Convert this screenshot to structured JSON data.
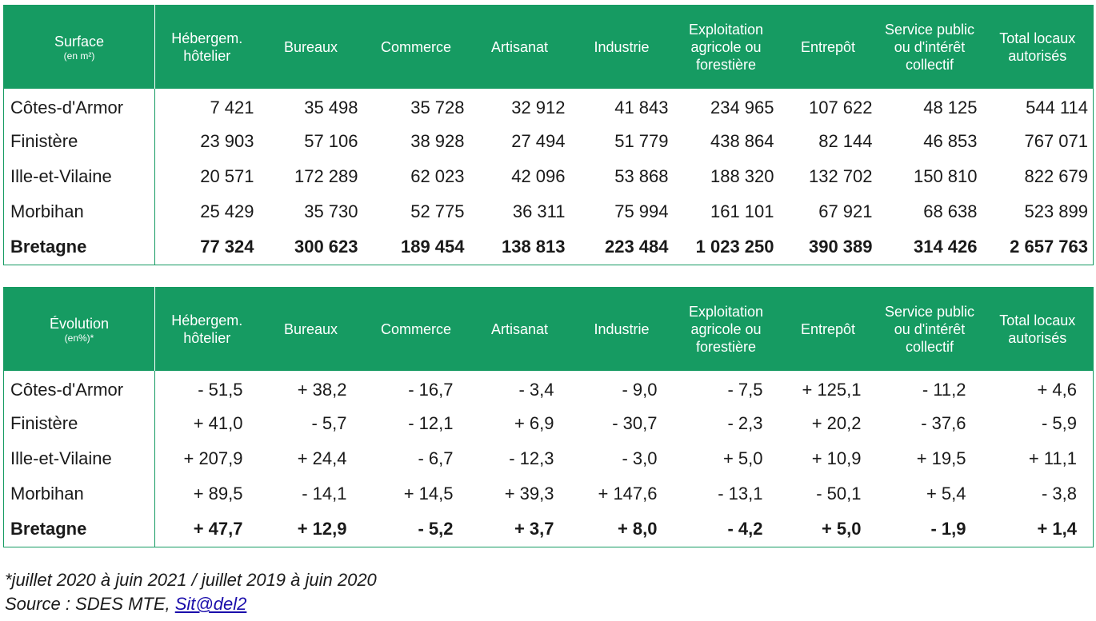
{
  "table_surface": {
    "header_first": "Surface",
    "header_first_unit": "(en m²)",
    "columns": [
      "Hébergem. hôtelier",
      "Bureaux",
      "Commerce",
      "Artisanat",
      "Industrie",
      "Exploitation agricole ou forestière",
      "Entrepôt",
      "Service public ou d'intérêt collectif",
      "Total locaux autorisés"
    ],
    "rows": [
      {
        "name": "Côtes-d'Armor",
        "values": [
          "7 421",
          "35 498",
          "35 728",
          "32 912",
          "41 843",
          "234 965",
          "107 622",
          "48 125",
          "544 114"
        ]
      },
      {
        "name": "Finistère",
        "values": [
          "23 903",
          "57 106",
          "38 928",
          "27 494",
          "51 779",
          "438 864",
          "82 144",
          "46 853",
          "767 071"
        ]
      },
      {
        "name": "Ille-et-Vilaine",
        "values": [
          "20 571",
          "172 289",
          "62 023",
          "42 096",
          "53 868",
          "188 320",
          "132 702",
          "150 810",
          "822 679"
        ]
      },
      {
        "name": "Morbihan",
        "values": [
          "25 429",
          "35 730",
          "52 775",
          "36 311",
          "75 994",
          "161 101",
          "67 921",
          "68 638",
          "523 899"
        ]
      }
    ],
    "total": {
      "name": "Bretagne",
      "values": [
        "77 324",
        "300 623",
        "189 454",
        "138 813",
        "223 484",
        "1 023 250",
        "390 389",
        "314 426",
        "2 657 763"
      ]
    }
  },
  "table_evolution": {
    "header_first": "Évolution",
    "header_first_unit": "(en%)*",
    "columns": [
      "Hébergem. hôtelier",
      "Bureaux",
      "Commerce",
      "Artisanat",
      "Industrie",
      "Exploitation agricole ou forestière",
      "Entrepôt",
      "Service public ou d'intérêt collectif",
      "Total locaux autorisés"
    ],
    "rows": [
      {
        "name": "Côtes-d'Armor",
        "values": [
          "- 51,5",
          "+ 38,2",
          "- 16,7",
          "- 3,4",
          "- 9,0",
          "- 7,5",
          "+ 125,1",
          "- 11,2",
          "+ 4,6"
        ]
      },
      {
        "name": "Finistère",
        "values": [
          "+ 41,0",
          "- 5,7",
          "- 12,1",
          "+ 6,9",
          "- 30,7",
          "- 2,3",
          "+ 20,2",
          "- 37,6",
          "- 5,9"
        ]
      },
      {
        "name": "Ille-et-Vilaine",
        "values": [
          "+ 207,9",
          "+ 24,4",
          "- 6,7",
          "- 12,3",
          "- 3,0",
          "+ 5,0",
          "+ 10,9",
          "+ 19,5",
          "+ 11,1"
        ]
      },
      {
        "name": "Morbihan",
        "values": [
          "+ 89,5",
          "- 14,1",
          "+ 14,5",
          "+ 39,3",
          "+ 147,6",
          "- 13,1",
          "- 50,1",
          "+ 5,4",
          "- 3,8"
        ]
      }
    ],
    "total": {
      "name": "Bretagne",
      "values": [
        "+ 47,7",
        "+ 12,9",
        "- 5,2",
        "+ 3,7",
        "+ 8,0",
        "- 4,2",
        "+ 5,0",
        "- 1,9",
        "+ 1,4"
      ]
    }
  },
  "footnote": {
    "period": "*juillet 2020 à juin 2021 / juillet 2019 à juin 2020",
    "source_prefix": "Source : SDES MTE, ",
    "source_link": "Sit@del2"
  },
  "colors": {
    "header_bg": "#169b62",
    "header_text": "#ffffff",
    "body_text": "#1a1a1a",
    "link": "#1a0dab"
  }
}
